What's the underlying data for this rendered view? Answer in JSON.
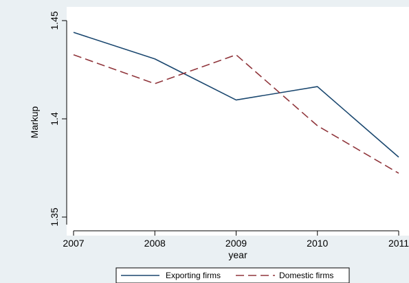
{
  "chart_data": {
    "type": "line",
    "title": "",
    "xlabel": "year",
    "ylabel": "Markup",
    "x": [
      2007,
      2008,
      2009,
      2010,
      2011
    ],
    "x_tick_labels": [
      "2007",
      "2008",
      "2009",
      "2010",
      "2011"
    ],
    "y_ticks": [
      1.35,
      1.4,
      1.45
    ],
    "y_tick_labels": [
      "1.35",
      "1.4",
      "1.45"
    ],
    "xlim": [
      2007,
      2011
    ],
    "ylim": [
      1.35,
      1.45
    ],
    "grid": false,
    "legend_position": "bottom",
    "series": [
      {
        "name": "Exporting firms",
        "values": [
          1.444,
          1.4305,
          1.4096,
          1.4164,
          1.3805
        ],
        "color": "#1a476f",
        "style": "solid"
      },
      {
        "name": "Domestic firms",
        "values": [
          1.4326,
          1.4179,
          1.4326,
          1.3965,
          1.3723
        ],
        "color": "#90353b",
        "style": "dashed"
      }
    ]
  },
  "colors": {
    "background": "#eaf0f3",
    "plot_area": "#ffffff"
  }
}
